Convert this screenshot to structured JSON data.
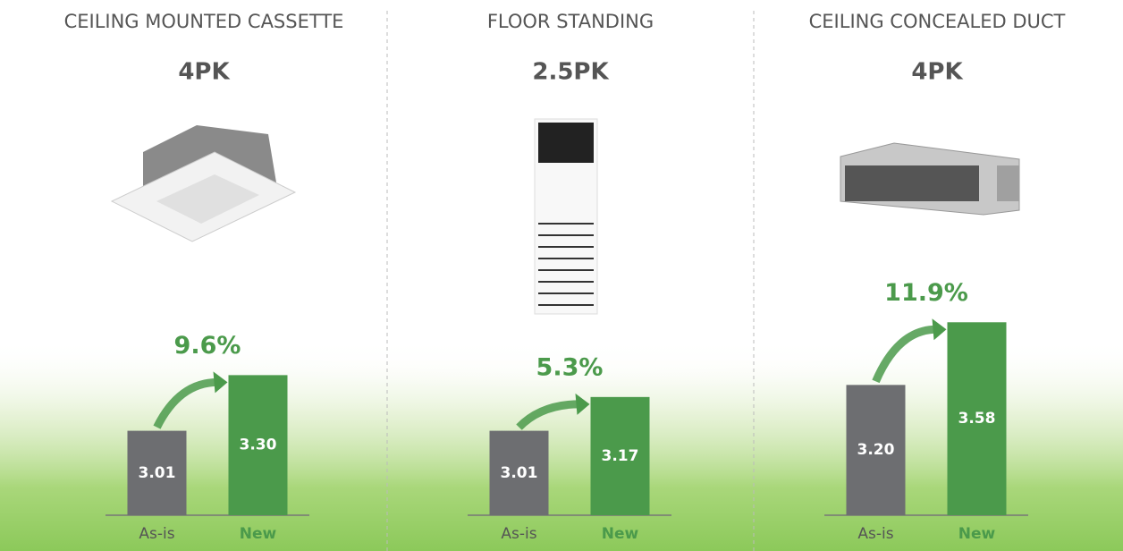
{
  "chart_data": [
    {
      "type": "bar",
      "title": "CEILING MOUNTED CASSETTE",
      "subtitle": "4PK",
      "annotation": "9.6%",
      "categories": [
        "As-is",
        "New"
      ],
      "values": [
        3.01,
        3.3
      ],
      "value_labels": [
        "3.01",
        "3.30"
      ],
      "colors": [
        "#6d6e71",
        "#4b9a4b"
      ],
      "ylim": [
        2.57,
        3.67
      ]
    },
    {
      "type": "bar",
      "title": "FLOOR STANDING",
      "subtitle": "2.5PK",
      "annotation": "5.3%",
      "categories": [
        "As-is",
        "New"
      ],
      "values": [
        3.01,
        3.17
      ],
      "value_labels": [
        "3.01",
        "3.17"
      ],
      "colors": [
        "#6d6e71",
        "#4b9a4b"
      ],
      "ylim": [
        2.61,
        3.61
      ]
    },
    {
      "type": "bar",
      "title": "CEILING CONCEALED DUCT",
      "subtitle": "4PK",
      "annotation": "11.9%",
      "categories": [
        "As-is",
        "New"
      ],
      "values": [
        3.2,
        3.58
      ],
      "value_labels": [
        "3.20",
        "3.58"
      ],
      "colors": [
        "#6d6e71",
        "#4b9a4b"
      ],
      "ylim": [
        2.41,
        3.69
      ]
    }
  ]
}
